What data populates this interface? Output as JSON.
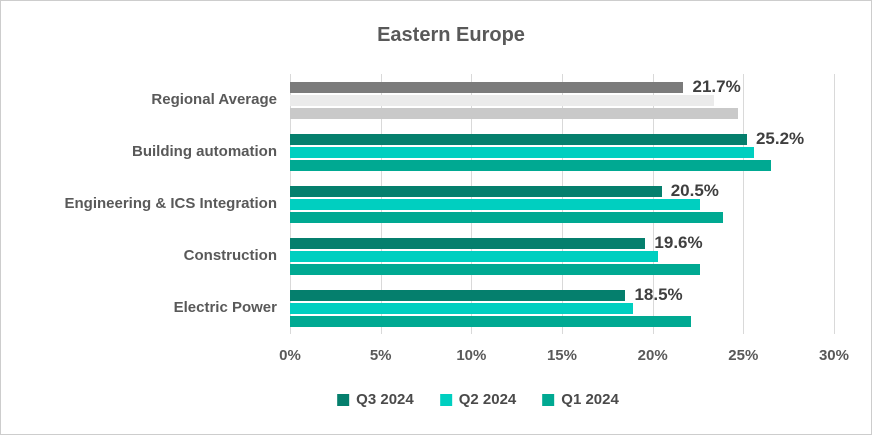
{
  "chart_data": {
    "type": "bar",
    "orientation": "horizontal",
    "title": "Eastern Europe",
    "categories": [
      "Regional Average",
      "Building automation",
      "Engineering & ICS Integration",
      "Construction",
      "Electric Power"
    ],
    "series": [
      {
        "name": "Q3 2024",
        "color": "#057f6d",
        "regional_average_color": "#7b7b7b",
        "values": [
          21.7,
          25.2,
          20.5,
          19.6,
          18.5
        ],
        "data_labels": [
          "21.7%",
          "25.2%",
          "20.5%",
          "19.6%",
          "18.5%"
        ]
      },
      {
        "name": "Q2 2024",
        "color": "#00cfc0",
        "regional_average_color": "#ebebeb",
        "values": [
          23.4,
          25.6,
          22.6,
          20.3,
          18.9
        ]
      },
      {
        "name": "Q1 2024",
        "color": "#00a992",
        "regional_average_color": "#c9c9c9",
        "values": [
          24.7,
          26.5,
          23.9,
          22.6,
          22.1
        ]
      }
    ],
    "x_axis": {
      "min": 0,
      "max": 30,
      "step": 5,
      "tick_labels": [
        "0%",
        "5%",
        "10%",
        "15%",
        "20%",
        "25%",
        "30%"
      ]
    },
    "legend": {
      "position": "bottom",
      "entries": [
        "Q3 2024",
        "Q2 2024",
        "Q1 2024"
      ]
    },
    "grid": true,
    "gridline_color": "#d9d9d9"
  }
}
